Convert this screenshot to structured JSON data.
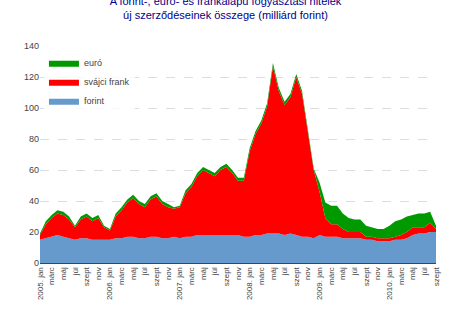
{
  "chart_data": {
    "type": "area",
    "stacked": true,
    "title": "A forint-, euró- és frankalapú fogyasztási hitelek\núj szerződéseinek összege (milliárd forint)",
    "categories": [
      "2005. jan",
      null,
      "márc",
      null,
      "máj",
      null,
      "júl",
      null,
      "szept",
      null,
      "nov",
      null,
      "2006. jan",
      null,
      "márc",
      null,
      "máj",
      null,
      "júl",
      null,
      "szept",
      null,
      "nov",
      null,
      "2007. jan",
      null,
      "márc",
      null,
      "máj",
      null,
      "júl",
      null,
      "szept",
      null,
      "nov",
      null,
      "2008. jan",
      null,
      "márc",
      null,
      "máj",
      null,
      "júl",
      null,
      "szept",
      null,
      "nov",
      null,
      "2009. jan",
      null,
      "márc",
      null,
      "máj",
      null,
      "júl",
      null,
      "szept",
      null,
      "nov",
      null,
      "2010. jan",
      null,
      "márc",
      null,
      "máj",
      null,
      "júl",
      null,
      "szept"
    ],
    "series": [
      {
        "name": "forint",
        "color": "#6699CC",
        "values": [
          15,
          16,
          17,
          18,
          17,
          16,
          15,
          16,
          16,
          15,
          15,
          15,
          15,
          16,
          16,
          17,
          17,
          16,
          16,
          17,
          17,
          16,
          16,
          17,
          16,
          17,
          17,
          18,
          18,
          18,
          18,
          18,
          18,
          18,
          18,
          17,
          17,
          18,
          18,
          19,
          19,
          19,
          18,
          19,
          18,
          17,
          17,
          16,
          18,
          17,
          17,
          17,
          16,
          16,
          16,
          16,
          15,
          15,
          14,
          14,
          14,
          15,
          15,
          16,
          18,
          19,
          19,
          20,
          20
        ]
      },
      {
        "name": "svájci frank",
        "color": "#FF0000",
        "values": [
          3,
          9,
          12,
          14,
          14,
          12,
          8,
          12,
          14,
          12,
          14,
          8,
          6,
          14,
          18,
          22,
          25,
          22,
          20,
          24,
          26,
          22,
          20,
          18,
          20,
          28,
          32,
          38,
          42,
          40,
          38,
          42,
          44,
          40,
          35,
          36,
          55,
          65,
          72,
          82,
          108,
          92,
          84,
          88,
          102,
          92,
          68,
          44,
          28,
          12,
          8,
          8,
          6,
          4,
          4,
          4,
          2,
          2,
          2,
          2,
          2,
          2,
          3,
          4,
          5,
          4,
          4,
          6,
          2
        ]
      },
      {
        "name": "euró",
        "color": "#009900",
        "values": [
          1,
          2,
          2,
          2,
          2,
          2,
          1,
          2,
          2,
          2,
          2,
          1,
          1,
          2,
          2,
          2,
          2,
          2,
          2,
          2,
          2,
          2,
          2,
          1,
          1,
          2,
          2,
          2,
          2,
          2,
          2,
          2,
          2,
          2,
          2,
          2,
          2,
          2,
          2,
          2,
          2,
          2,
          2,
          2,
          2,
          2,
          2,
          1,
          6,
          10,
          12,
          12,
          10,
          9,
          8,
          8,
          7,
          6,
          6,
          6,
          8,
          10,
          10,
          10,
          8,
          9,
          9,
          7,
          2
        ]
      }
    ],
    "ylim": [
      0,
      140
    ],
    "yticks": [
      0,
      20,
      40,
      60,
      80,
      100,
      120,
      140
    ],
    "grid": true,
    "legend": "upper left"
  }
}
